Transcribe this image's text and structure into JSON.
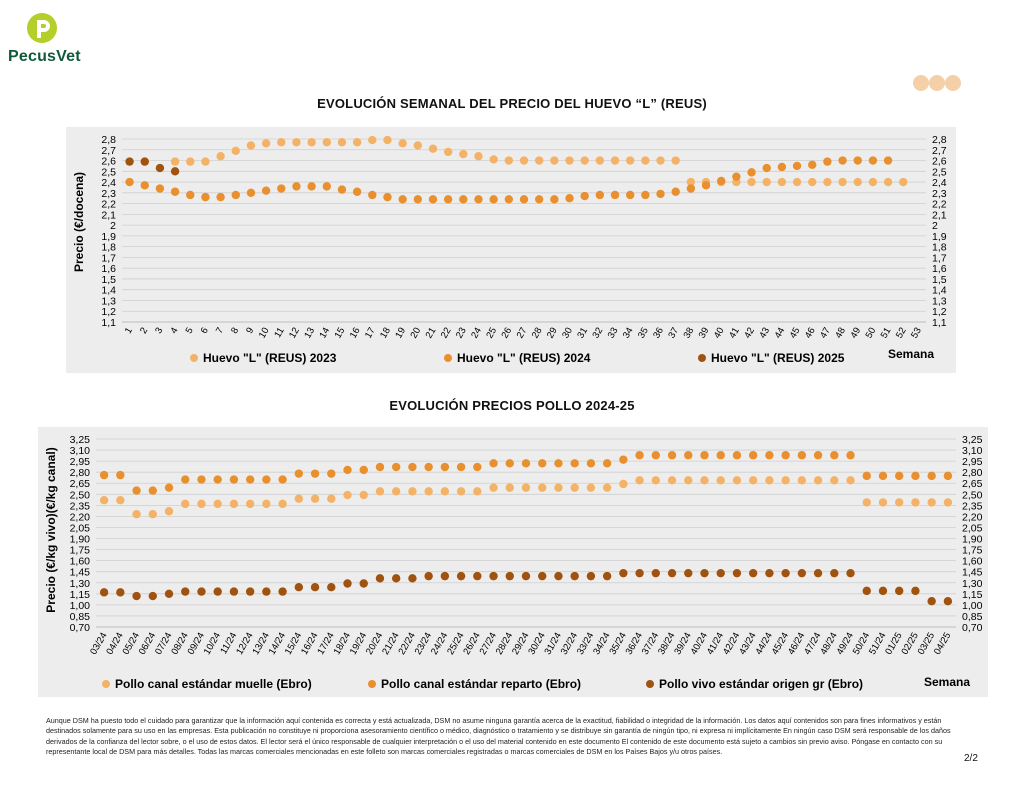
{
  "brand": {
    "name": "PecusVet",
    "color": "#0f5a3b",
    "accent": "#b5cf2a"
  },
  "colors": {
    "light": "#f4b267",
    "mid": "#e98f2d",
    "dark": "#a0520f",
    "panel": "#ededed"
  },
  "chart_egg": {
    "title": "EVOLUCIÓN SEMANAL DEL PRECIO DEL HUEVO “L” (REUS)",
    "ylabel": "Precio (€/docena)",
    "xlabel": "Semana",
    "y_ticks": [
      "2,8",
      "2,7",
      "2,6",
      "2,5",
      "2,4",
      "2,3",
      "2,2",
      "2,1",
      "2",
      "1,9",
      "1,8",
      "1,7",
      "1,6",
      "1,5",
      "1,4",
      "1,3",
      "1,2",
      "1,1"
    ],
    "legend": [
      "Huevo \"L\" (REUS) 2023",
      "Huevo \"L\" (REUS) 2024",
      "Huevo \"L\" (REUS) 2025"
    ]
  },
  "chart_chicken": {
    "title": "EVOLUCIÓN PRECIOS POLLO 2024-25",
    "ylabel": "Precio (€/kg vivo)(€/kg canal)",
    "xlabel": "Semana",
    "y_ticks": [
      "3,25",
      "3,10",
      "2,95",
      "2,80",
      "2,65",
      "2,50",
      "2,35",
      "2,20",
      "2,05",
      "1,90",
      "1,75",
      "1,60",
      "1,45",
      "1,30",
      "1,15",
      "1,00",
      "0,85",
      "0,70"
    ],
    "legend": [
      "Pollo canal estándar muelle (Ebro)",
      "Pollo canal estándar reparto (Ebro)",
      "Pollo vivo estándar origen gr (Ebro)"
    ]
  },
  "chart_data": [
    {
      "type": "scatter",
      "title": "EVOLUCIÓN SEMANAL DEL PRECIO DEL HUEVO “L” (REUS)",
      "xlabel": "Semana",
      "ylabel": "Precio (€/docena)",
      "ylim": [
        1.1,
        2.8
      ],
      "categories": [
        "1",
        "2",
        "3",
        "4",
        "5",
        "6",
        "7",
        "8",
        "9",
        "10",
        "11",
        "12",
        "13",
        "14",
        "15",
        "16",
        "17",
        "18",
        "19",
        "20",
        "21",
        "22",
        "23",
        "24",
        "25",
        "26",
        "27",
        "28",
        "29",
        "30",
        "31",
        "32",
        "33",
        "34",
        "35",
        "36",
        "37",
        "38",
        "39",
        "40",
        "41",
        "42",
        "43",
        "44",
        "45",
        "46",
        "47",
        "48",
        "49",
        "50",
        "51",
        "52",
        "53"
      ],
      "series": [
        {
          "name": "Huevo \"L\" (REUS) 2023",
          "color": "#f4b267",
          "values": [
            null,
            null,
            null,
            2.59,
            2.59,
            2.59,
            2.64,
            2.69,
            2.74,
            2.76,
            2.77,
            2.77,
            2.77,
            2.77,
            2.77,
            2.77,
            2.79,
            2.79,
            2.76,
            2.74,
            2.71,
            2.68,
            2.66,
            2.64,
            2.61,
            2.6,
            2.6,
            2.6,
            2.6,
            2.6,
            2.6,
            2.6,
            2.6,
            2.6,
            2.6,
            2.6,
            2.6,
            2.4,
            2.4,
            2.4,
            2.4,
            2.4,
            2.4,
            2.4,
            2.4,
            2.4,
            2.4,
            2.4,
            2.4,
            2.4,
            2.4,
            2.4,
            null
          ]
        },
        {
          "name": "Huevo \"L\" (REUS) 2024",
          "color": "#e98f2d",
          "values": [
            2.4,
            2.37,
            2.34,
            2.31,
            2.28,
            2.26,
            2.26,
            2.28,
            2.3,
            2.32,
            2.34,
            2.36,
            2.36,
            2.36,
            2.33,
            2.31,
            2.28,
            2.26,
            2.24,
            2.24,
            2.24,
            2.24,
            2.24,
            2.24,
            2.24,
            2.24,
            2.24,
            2.24,
            2.24,
            2.25,
            2.27,
            2.28,
            2.28,
            2.28,
            2.28,
            2.29,
            2.31,
            2.34,
            2.37,
            2.41,
            2.45,
            2.49,
            2.53,
            2.54,
            2.55,
            2.56,
            2.59,
            2.6,
            2.6,
            2.6,
            2.6,
            null,
            null
          ]
        },
        {
          "name": "Huevo \"L\" (REUS) 2025",
          "color": "#a0520f",
          "values": [
            2.59,
            2.59,
            2.53,
            2.5,
            null,
            null,
            null,
            null,
            null,
            null,
            null,
            null,
            null,
            null,
            null,
            null,
            null,
            null,
            null,
            null,
            null,
            null,
            null,
            null,
            null,
            null,
            null,
            null,
            null,
            null,
            null,
            null,
            null,
            null,
            null,
            null,
            null,
            null,
            null,
            null,
            null,
            null,
            null,
            null,
            null,
            null,
            null,
            null,
            null,
            null,
            null,
            null,
            null
          ]
        }
      ]
    },
    {
      "type": "scatter",
      "title": "EVOLUCIÓN PRECIOS POLLO 2024-25",
      "xlabel": "Semana",
      "ylabel": "Precio (€/kg vivo)(€/kg canal)",
      "ylim": [
        0.7,
        3.25
      ],
      "categories": [
        "03/24",
        "04/24",
        "05/24",
        "06/24",
        "07/24",
        "08/24",
        "09/24",
        "10/24",
        "11/24",
        "12/24",
        "13/24",
        "14/24",
        "15/24",
        "16/24",
        "17/24",
        "18/24",
        "19/24",
        "20/24",
        "21/24",
        "22/24",
        "23/24",
        "24/24",
        "25/24",
        "26/24",
        "27/24",
        "28/24",
        "29/24",
        "30/24",
        "31/24",
        "32/24",
        "33/24",
        "34/24",
        "35/24",
        "36/24",
        "37/24",
        "38/24",
        "39/24",
        "40/24",
        "41/24",
        "42/24",
        "43/24",
        "44/24",
        "45/24",
        "46/24",
        "47/24",
        "48/24",
        "49/24",
        "50/24",
        "51/24",
        "01/25",
        "02/25",
        "03/25",
        "04/25"
      ],
      "series": [
        {
          "name": "Pollo canal estándar muelle (Ebro)",
          "color": "#f4b267",
          "values": [
            2.42,
            2.42,
            2.23,
            2.23,
            2.27,
            2.37,
            2.37,
            2.37,
            2.37,
            2.37,
            2.37,
            2.37,
            2.44,
            2.44,
            2.44,
            2.49,
            2.49,
            2.54,
            2.54,
            2.54,
            2.54,
            2.54,
            2.54,
            2.54,
            2.59,
            2.59,
            2.59,
            2.59,
            2.59,
            2.59,
            2.59,
            2.59,
            2.64,
            2.69,
            2.69,
            2.69,
            2.69,
            2.69,
            2.69,
            2.69,
            2.69,
            2.69,
            2.69,
            2.69,
            2.69,
            2.69,
            2.69,
            2.39,
            2.39,
            2.39,
            2.39,
            2.39,
            2.39
          ]
        },
        {
          "name": "Pollo canal estándar reparto (Ebro)",
          "color": "#e98f2d",
          "values": [
            2.76,
            2.76,
            2.55,
            2.55,
            2.59,
            2.7,
            2.7,
            2.7,
            2.7,
            2.7,
            2.7,
            2.7,
            2.78,
            2.78,
            2.78,
            2.83,
            2.83,
            2.87,
            2.87,
            2.87,
            2.87,
            2.87,
            2.87,
            2.87,
            2.92,
            2.92,
            2.92,
            2.92,
            2.92,
            2.92,
            2.92,
            2.92,
            2.97,
            3.03,
            3.03,
            3.03,
            3.03,
            3.03,
            3.03,
            3.03,
            3.03,
            3.03,
            3.03,
            3.03,
            3.03,
            3.03,
            3.03,
            2.75,
            2.75,
            2.75,
            2.75,
            2.75,
            2.75
          ]
        },
        {
          "name": "Pollo vivo estándar origen gr (Ebro)",
          "color": "#a0520f",
          "values": [
            1.17,
            1.17,
            1.12,
            1.12,
            1.15,
            1.18,
            1.18,
            1.18,
            1.18,
            1.18,
            1.18,
            1.18,
            1.24,
            1.24,
            1.24,
            1.29,
            1.29,
            1.36,
            1.36,
            1.36,
            1.39,
            1.39,
            1.39,
            1.39,
            1.39,
            1.39,
            1.39,
            1.39,
            1.39,
            1.39,
            1.39,
            1.39,
            1.43,
            1.43,
            1.43,
            1.43,
            1.43,
            1.43,
            1.43,
            1.43,
            1.43,
            1.43,
            1.43,
            1.43,
            1.43,
            1.43,
            1.43,
            1.19,
            1.19,
            1.19,
            1.19,
            1.05,
            1.05
          ]
        }
      ]
    }
  ],
  "footer": {
    "disclaimer": "Aunque DSM ha puesto todo el cuidado para garantizar que la información aquí contenida es correcta y está actualizada, DSM no asume ninguna garantía acerca de la exactitud, fiabilidad o integridad de la información. Los datos aquí contenidos son para fines informativos y están destinados solamente para su uso en las empresas. Esta publicación no constituye ni proporciona asesoramiento científico o médico, diagnóstico o tratamiento y se distribuye sin garantía de ningún tipo, ni expresa ni implícitamente En ningún caso DSM será responsable de los daños derivados de la confianza del lector sobre, o el uso de estos datos. El lector será el único responsable de cualquier interpretación o el uso del material contenido en este documento El contenido de este documento está sujeto a cambios sin previo aviso. Póngase en contacto con su representante local de DSM para más detalles. Todas las marcas comerciales mencionadas en este folleto son marcas comerciales registradas o marcas comerciales de DSM en los Países Bajos y/u otros países.",
    "page": "2/2"
  }
}
